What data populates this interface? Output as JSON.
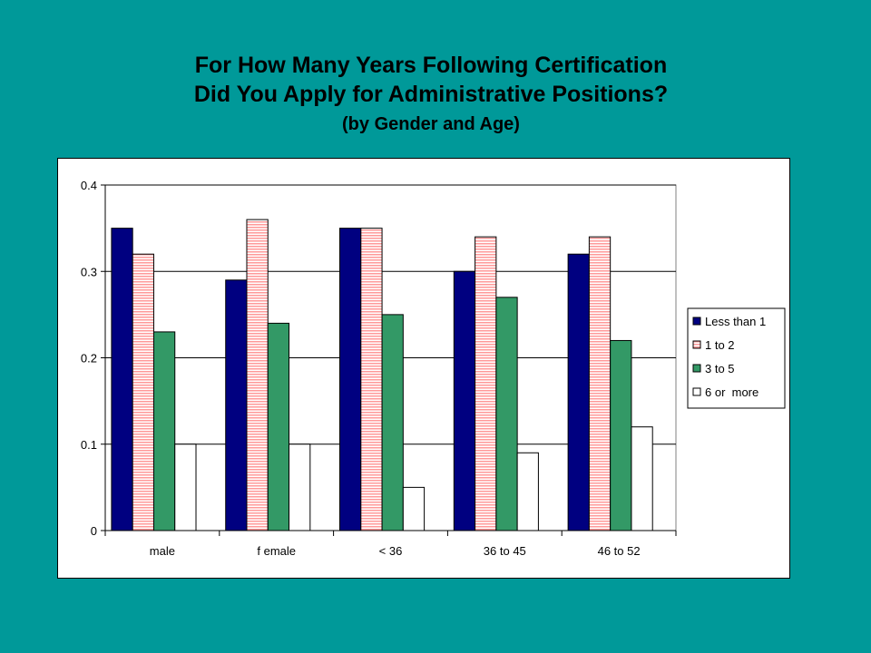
{
  "title_lines": [
    "For How Many Years Following Certification",
    "Did You Apply for Administrative Positions?"
  ],
  "subtitle": "(by Gender and Age)",
  "chart_data": {
    "type": "bar",
    "categories": [
      "male",
      "f emale",
      "< 36",
      "36 to 45",
      "46 to 52"
    ],
    "series": [
      {
        "name": "Less than 1",
        "values": [
          0.35,
          0.29,
          0.35,
          0.3,
          0.32
        ],
        "color": "#000080",
        "pattern": "solid"
      },
      {
        "name": "1 to 2",
        "values": [
          0.32,
          0.36,
          0.35,
          0.34,
          0.34
        ],
        "color": "#ff9999",
        "pattern": "horizontal-stripes"
      },
      {
        "name": "3 to 5",
        "values": [
          0.23,
          0.24,
          0.25,
          0.27,
          0.22
        ],
        "color": "#339966",
        "pattern": "solid"
      },
      {
        "name": "6 or  more",
        "values": [
          0.1,
          0.1,
          0.05,
          0.09,
          0.12
        ],
        "color": "#ffffff",
        "pattern": "solid"
      }
    ],
    "ylim": [
      0,
      0.4
    ],
    "yticks": [
      "0",
      "0.1",
      "0.2",
      "0.3",
      "0.4"
    ],
    "ytick_values": [
      0,
      0.1,
      0.2,
      0.3,
      0.4
    ],
    "grid": true,
    "legend_position": "right"
  }
}
